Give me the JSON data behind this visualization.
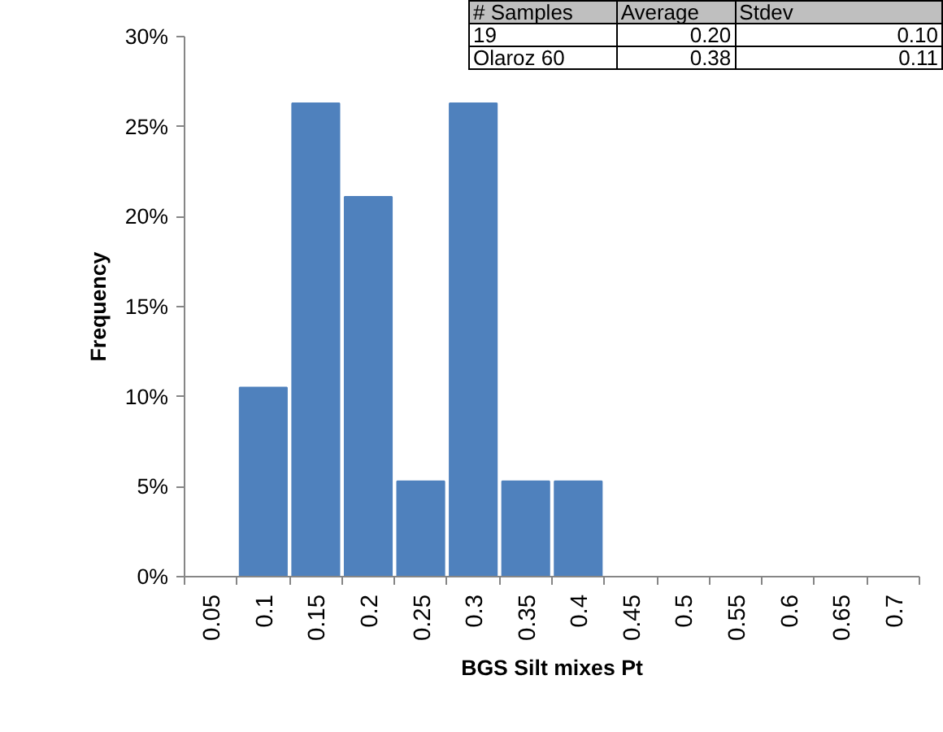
{
  "chart_data": {
    "type": "bar",
    "xlabel": "BGS Silt mixes Pt",
    "ylabel": "Frequency",
    "categories": [
      "0.05",
      "0.1",
      "0.15",
      "0.2",
      "0.25",
      "0.3",
      "0.35",
      "0.4",
      "0.45",
      "0.5",
      "0.55",
      "0.6",
      "0.65",
      "0.7"
    ],
    "values": [
      0,
      10.5,
      26.3,
      21.1,
      5.3,
      26.3,
      5.3,
      5.3,
      0,
      0,
      0,
      0,
      0,
      0
    ],
    "color": "#4f81bd",
    "ylim": [
      0,
      30
    ],
    "yticks": [
      {
        "value": 0,
        "label": "0%"
      },
      {
        "value": 5,
        "label": "5%"
      },
      {
        "value": 10,
        "label": "10%"
      },
      {
        "value": 15,
        "label": "15%"
      },
      {
        "value": 20,
        "label": "20%"
      },
      {
        "value": 25,
        "label": "25%"
      },
      {
        "value": 30,
        "label": "30%"
      }
    ],
    "grid": false,
    "annotations": [
      "# Samples",
      "Average",
      "Stdev",
      "19",
      "0.20",
      "0.10",
      "Olaroz 60",
      "0.38",
      "0.11"
    ]
  }
}
